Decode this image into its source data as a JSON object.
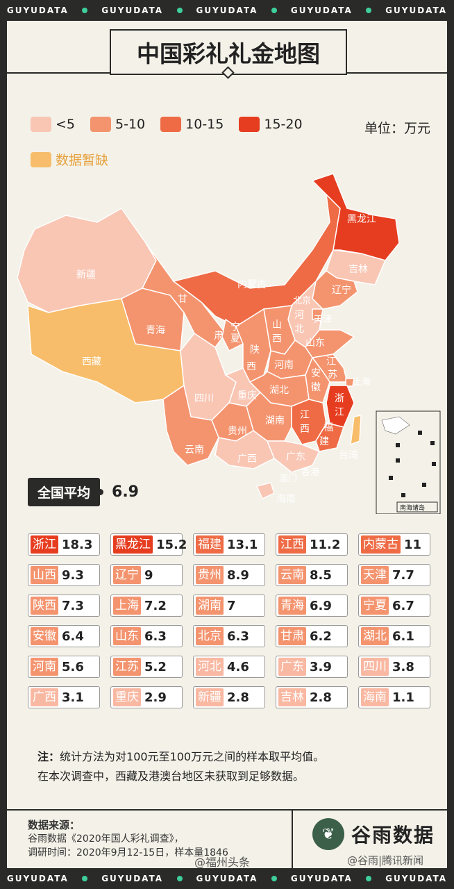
{
  "brand_strip": {
    "word": "GUYUDATA"
  },
  "title": "中国彩礼礼金地图",
  "legend": {
    "items": [
      {
        "label": "<5",
        "color": "#f9c6b4"
      },
      {
        "label": "5-10",
        "color": "#f4946f"
      },
      {
        "label": "10-15",
        "color": "#ee6b45"
      },
      {
        "label": "15-20",
        "color": "#e63d20"
      }
    ],
    "missing_label": "数据暂缺",
    "missing_color": "#f7bd6a",
    "unit": "单位：万元"
  },
  "map_labels": {
    "xinjiang": "新疆",
    "xizang": "西藏",
    "qinghai": "青海",
    "gansu1": "甘",
    "gansu2": "肃",
    "neimenggu": "内蒙古",
    "heilongjiang": "黑龙江",
    "jilin": "吉林",
    "liaoning": "辽宁",
    "beijing": "北京",
    "tianjin": "天津",
    "hebei1": "河",
    "hebei2": "北",
    "shanxi1": "山",
    "shanxi2": "西",
    "shandong": "山东",
    "ningxia1": "宁",
    "ningxia2": "夏",
    "shaanxi1": "陕",
    "shaanxi2": "西",
    "henan": "河南",
    "jiangsu1": "江",
    "jiangsu2": "苏",
    "anhui1": "安",
    "anhui2": "徽",
    "shanghai": "上海",
    "sichuan": "四川",
    "chongqing": "重庆",
    "hubei": "湖北",
    "zhejiang1": "浙",
    "zhejiang2": "江",
    "jiangxi1": "江",
    "jiangxi2": "西",
    "hunan": "湖南",
    "fujian1": "福",
    "fujian2": "建",
    "guizhou": "贵州",
    "yunnan": "云南",
    "guangxi": "广西",
    "guangdong": "广东",
    "xianggang": "香港",
    "aomen": "澳门",
    "taiwan": "台湾",
    "hainan": "海南",
    "nanhai": "南海诸岛"
  },
  "national_average": {
    "label": "全国平均",
    "value": "6.9"
  },
  "ranking": [
    {
      "name": "浙江",
      "value": "18.3",
      "color": "#e63d20"
    },
    {
      "name": "黑龙江",
      "value": "15.2",
      "color": "#e63d20"
    },
    {
      "name": "福建",
      "value": "13.1",
      "color": "#ee6b45"
    },
    {
      "name": "江西",
      "value": "11.2",
      "color": "#ee6b45"
    },
    {
      "name": "内蒙古",
      "value": "11",
      "color": "#ee6b45"
    },
    {
      "name": "山西",
      "value": "9.3",
      "color": "#f4946f"
    },
    {
      "name": "辽宁",
      "value": "9",
      "color": "#f4946f"
    },
    {
      "name": "贵州",
      "value": "8.9",
      "color": "#f4946f"
    },
    {
      "name": "云南",
      "value": "8.5",
      "color": "#f4946f"
    },
    {
      "name": "天津",
      "value": "7.7",
      "color": "#f4946f"
    },
    {
      "name": "陕西",
      "value": "7.3",
      "color": "#f4946f"
    },
    {
      "name": "上海",
      "value": "7.2",
      "color": "#f4946f"
    },
    {
      "name": "湖南",
      "value": "7",
      "color": "#f4946f"
    },
    {
      "name": "青海",
      "value": "6.9",
      "color": "#f4946f"
    },
    {
      "name": "宁夏",
      "value": "6.7",
      "color": "#f4946f"
    },
    {
      "name": "安徽",
      "value": "6.4",
      "color": "#f4946f"
    },
    {
      "name": "山东",
      "value": "6.3",
      "color": "#f4946f"
    },
    {
      "name": "北京",
      "value": "6.3",
      "color": "#f4946f"
    },
    {
      "name": "甘肃",
      "value": "6.2",
      "color": "#f4946f"
    },
    {
      "name": "湖北",
      "value": "6.1",
      "color": "#f4946f"
    },
    {
      "name": "河南",
      "value": "5.6",
      "color": "#f4946f"
    },
    {
      "name": "江苏",
      "value": "5.2",
      "color": "#f4946f"
    },
    {
      "name": "河北",
      "value": "4.6",
      "color": "#f9b8a2"
    },
    {
      "name": "广东",
      "value": "3.9",
      "color": "#f9b8a2"
    },
    {
      "name": "四川",
      "value": "3.8",
      "color": "#f9b8a2"
    },
    {
      "name": "广西",
      "value": "3.1",
      "color": "#f9b8a2"
    },
    {
      "name": "重庆",
      "value": "2.9",
      "color": "#f9b8a2"
    },
    {
      "name": "新疆",
      "value": "2.8",
      "color": "#f9b8a2"
    },
    {
      "name": "吉林",
      "value": "2.8",
      "color": "#f9b8a2"
    },
    {
      "name": "海南",
      "value": "1.1",
      "color": "#f9b8a2"
    }
  ],
  "note": {
    "label": "注：",
    "line1": "统计方法为对100元至100万元之间的样本取平均值。",
    "line2": "在本次调查中，西藏及港澳台地区未获取到足够数据。"
  },
  "source": {
    "heading": "数据来源：",
    "line1": "谷雨数据《2020年国人彩礼调查》，",
    "line2": "调研时间：2020年9月12-15日，样本量1846"
  },
  "logo": {
    "text": "谷雨数据"
  },
  "watermarks": {
    "left": "@福州头条",
    "right": "@谷雨|腾讯新闻"
  }
}
